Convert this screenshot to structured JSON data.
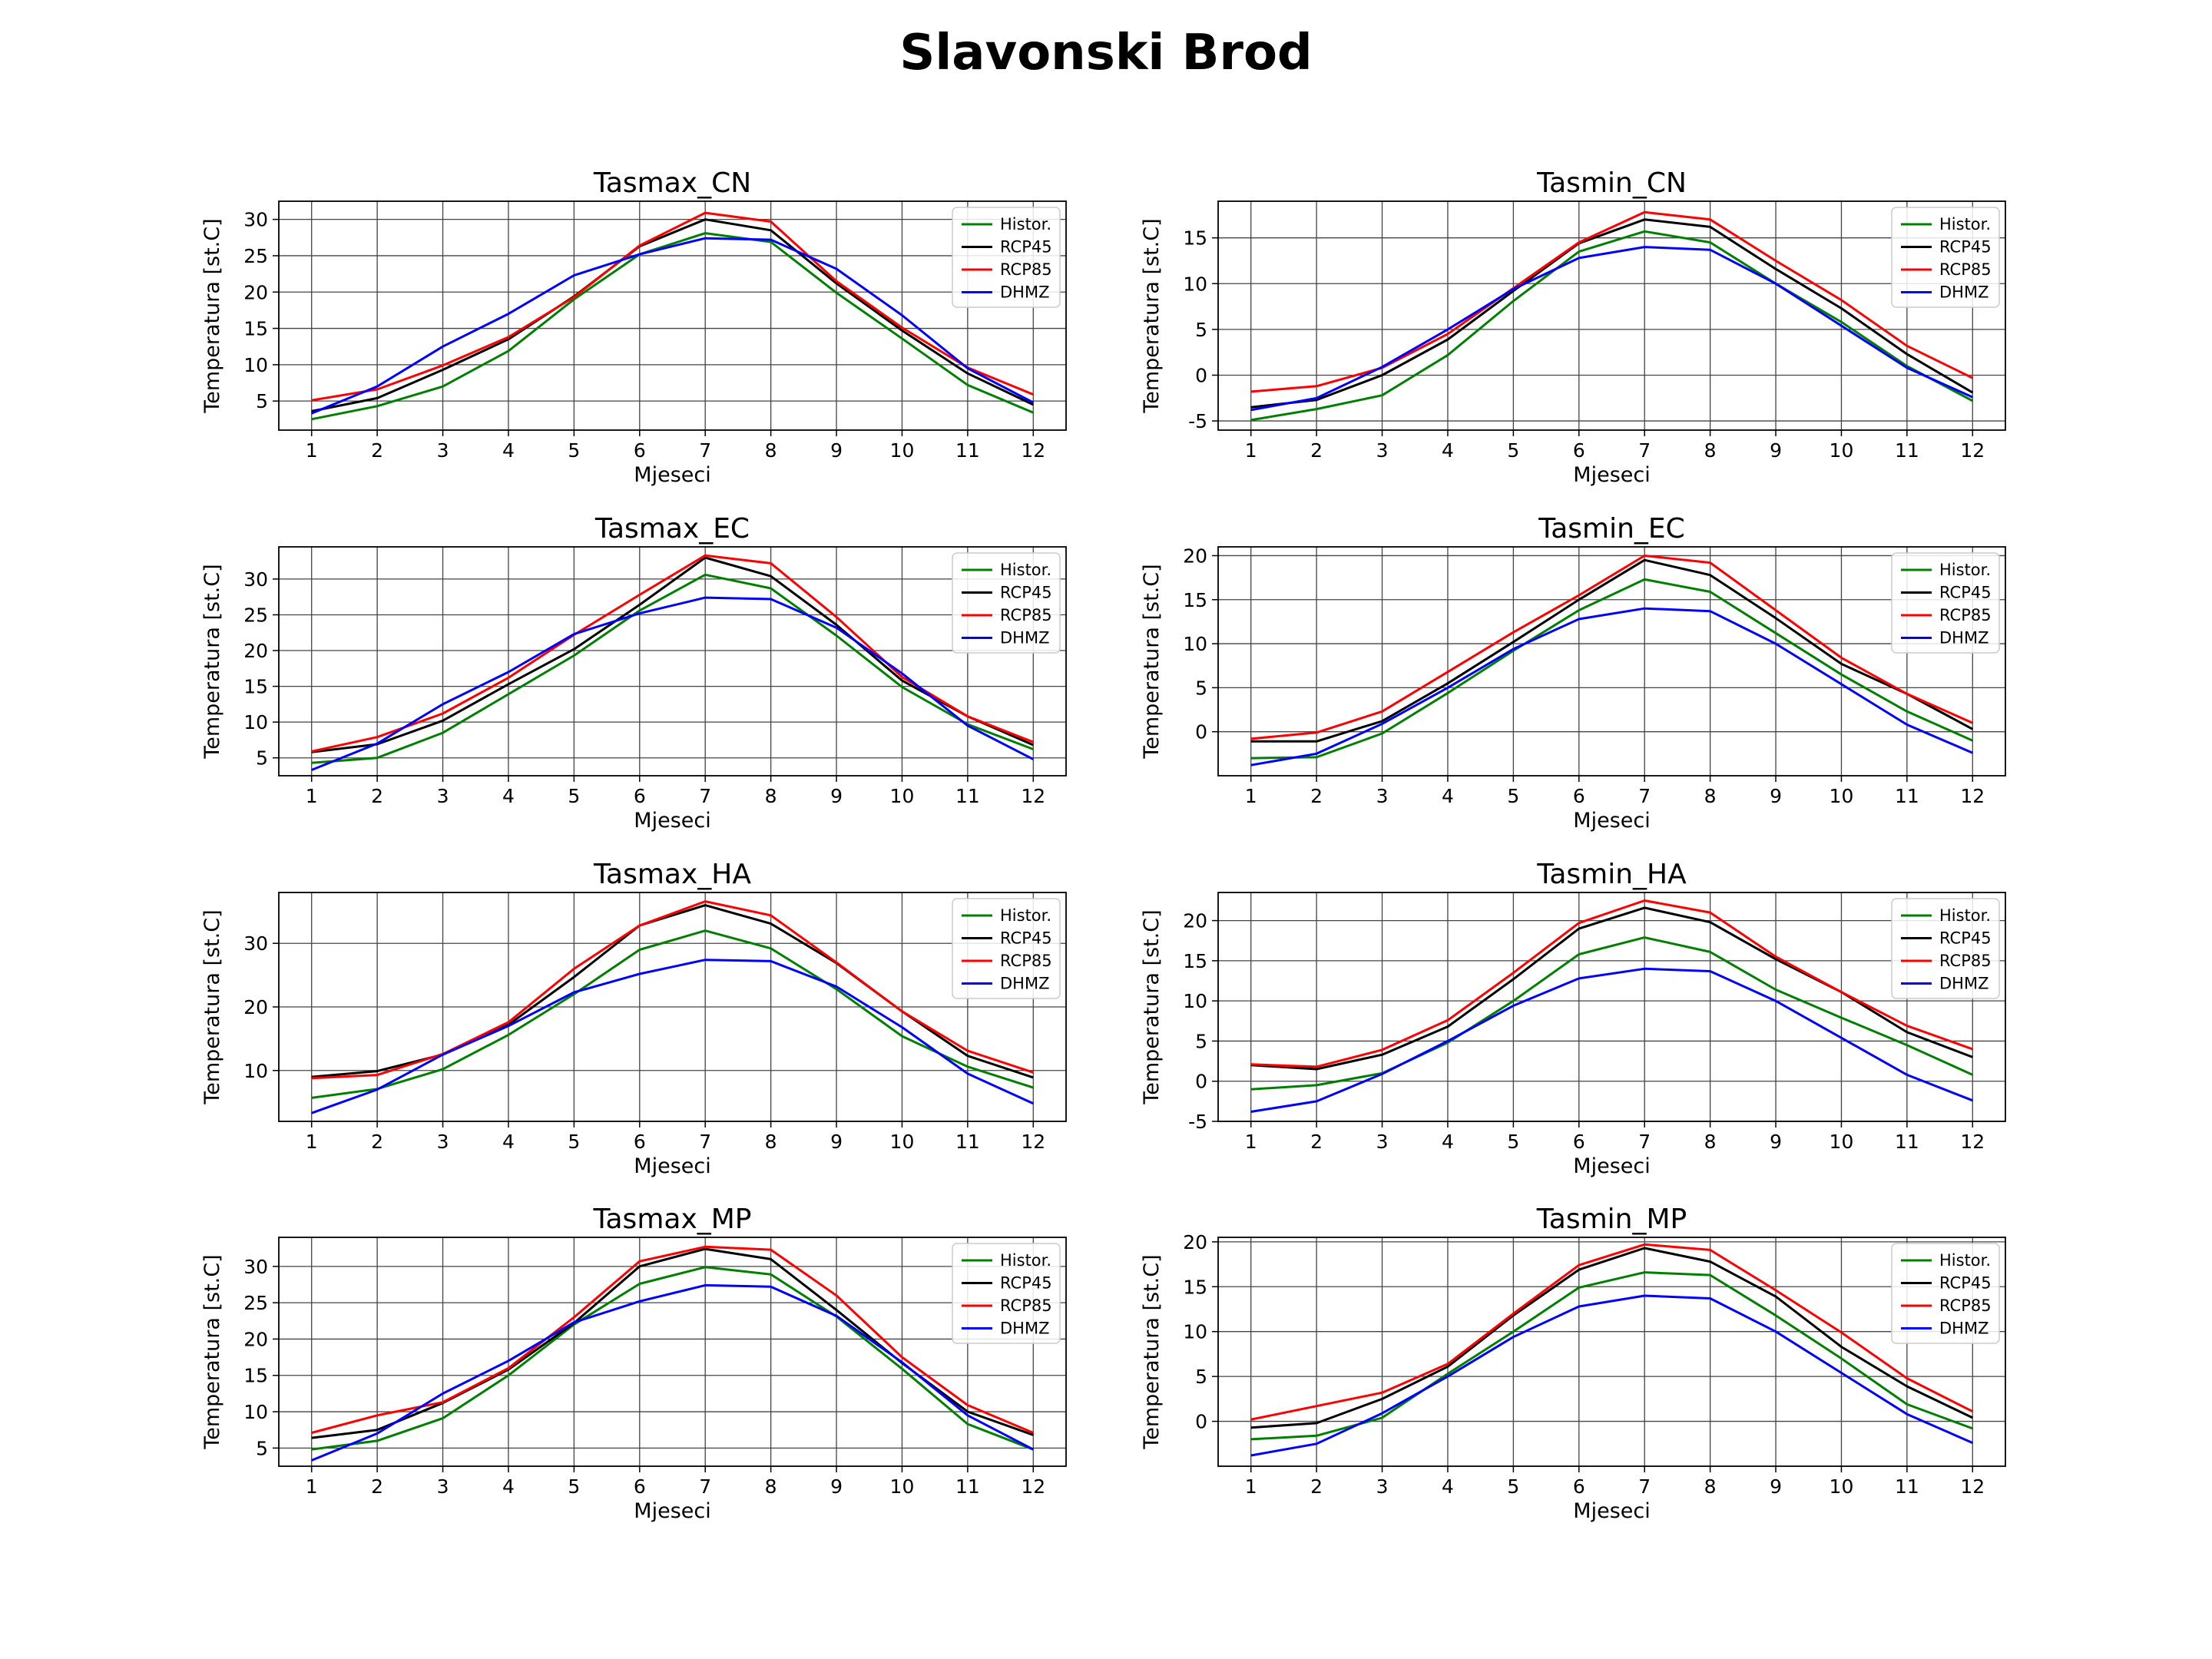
{
  "figure": {
    "title": "Slavonski Brod"
  },
  "chart_data": [
    {
      "type": "line",
      "title": "Tasmax_CN",
      "xlabel": "Mjeseci",
      "ylabel": "Temperatura [st.C]",
      "x": [
        1,
        2,
        3,
        4,
        5,
        6,
        7,
        8,
        9,
        10,
        11,
        12
      ],
      "xlim": [
        0.5,
        12.5
      ],
      "ylim": [
        1,
        32.5
      ],
      "yticks": [
        5,
        10,
        15,
        20,
        25,
        30
      ],
      "grid": true,
      "legend_position": "top-right",
      "series": [
        {
          "name": "Histor.",
          "color": "#008000",
          "values": [
            2.5,
            4.3,
            7.0,
            11.9,
            19.0,
            25.2,
            28.1,
            26.9,
            19.9,
            13.6,
            7.2,
            3.4
          ]
        },
        {
          "name": "RCP45",
          "color": "#000000",
          "values": [
            3.6,
            5.4,
            9.3,
            13.5,
            19.4,
            26.3,
            30.0,
            28.5,
            21.2,
            14.7,
            8.8,
            4.5
          ]
        },
        {
          "name": "RCP85",
          "color": "#ff0000",
          "values": [
            5.1,
            6.6,
            9.9,
            13.8,
            19.3,
            26.4,
            30.9,
            29.7,
            21.5,
            15.1,
            9.6,
            5.9
          ]
        },
        {
          "name": "DHMZ",
          "color": "#0000ff",
          "values": [
            3.3,
            7.0,
            12.5,
            17.0,
            22.3,
            25.2,
            27.4,
            27.2,
            23.2,
            16.8,
            9.5,
            4.8
          ]
        }
      ]
    },
    {
      "type": "line",
      "title": "Tasmin_CN",
      "xlabel": "Mjeseci",
      "ylabel": "Temperatura [st.C]",
      "x": [
        1,
        2,
        3,
        4,
        5,
        6,
        7,
        8,
        9,
        10,
        11,
        12
      ],
      "xlim": [
        0.5,
        12.5
      ],
      "ylim": [
        -6,
        19
      ],
      "yticks": [
        -5,
        0,
        5,
        10,
        15
      ],
      "grid": true,
      "legend_position": "top-right",
      "series": [
        {
          "name": "Histor.",
          "color": "#008000",
          "values": [
            -4.9,
            -3.7,
            -2.2,
            2.2,
            8.1,
            13.5,
            15.7,
            14.5,
            10.0,
            5.8,
            1.0,
            -2.8
          ]
        },
        {
          "name": "RCP45",
          "color": "#000000",
          "values": [
            -3.5,
            -2.7,
            0.0,
            3.9,
            9.2,
            14.4,
            17.0,
            16.2,
            11.6,
            7.3,
            2.3,
            -1.9
          ]
        },
        {
          "name": "RCP85",
          "color": "#ff0000",
          "values": [
            -1.8,
            -1.2,
            0.8,
            4.5,
            9.5,
            14.5,
            17.8,
            17.0,
            12.5,
            8.2,
            3.2,
            -0.3
          ]
        },
        {
          "name": "DHMZ",
          "color": "#0000ff",
          "values": [
            -3.8,
            -2.5,
            0.9,
            5.0,
            9.4,
            12.8,
            14.0,
            13.7,
            10.0,
            5.4,
            0.8,
            -2.4
          ]
        }
      ]
    },
    {
      "type": "line",
      "title": "Tasmax_EC",
      "xlabel": "Mjeseci",
      "ylabel": "Temperatura [st.C]",
      "x": [
        1,
        2,
        3,
        4,
        5,
        6,
        7,
        8,
        9,
        10,
        11,
        12
      ],
      "xlim": [
        0.5,
        12.5
      ],
      "ylim": [
        2.5,
        34.5
      ],
      "yticks": [
        5,
        10,
        15,
        20,
        25,
        30
      ],
      "grid": true,
      "legend_position": "top-right",
      "series": [
        {
          "name": "Histor.",
          "color": "#008000",
          "values": [
            4.3,
            5.0,
            8.5,
            13.9,
            19.3,
            25.6,
            30.6,
            28.7,
            22.1,
            14.9,
            9.7,
            6.2
          ]
        },
        {
          "name": "RCP45",
          "color": "#000000",
          "values": [
            5.8,
            6.9,
            10.2,
            15.3,
            20.2,
            26.4,
            33.0,
            30.4,
            23.6,
            15.8,
            10.8,
            6.8
          ]
        },
        {
          "name": "RCP85",
          "color": "#ff0000",
          "values": [
            5.9,
            7.9,
            11.2,
            16.2,
            22.2,
            27.8,
            33.3,
            32.2,
            24.7,
            16.3,
            10.8,
            7.2
          ]
        },
        {
          "name": "DHMZ",
          "color": "#0000ff",
          "values": [
            3.3,
            7.0,
            12.5,
            17.0,
            22.3,
            25.2,
            27.4,
            27.2,
            23.2,
            16.8,
            9.5,
            4.8
          ]
        }
      ]
    },
    {
      "type": "line",
      "title": "Tasmin_EC",
      "xlabel": "Mjeseci",
      "ylabel": "Temperatura [st.C]",
      "x": [
        1,
        2,
        3,
        4,
        5,
        6,
        7,
        8,
        9,
        10,
        11,
        12
      ],
      "xlim": [
        0.5,
        12.5
      ],
      "ylim": [
        -5,
        21
      ],
      "yticks": [
        0,
        5,
        10,
        15,
        20
      ],
      "grid": true,
      "legend_position": "top-right",
      "series": [
        {
          "name": "Histor.",
          "color": "#008000",
          "values": [
            -3.0,
            -2.9,
            -0.2,
            4.4,
            9.2,
            13.8,
            17.3,
            15.9,
            11.2,
            6.5,
            2.3,
            -1.0
          ]
        },
        {
          "name": "RCP45",
          "color": "#000000",
          "values": [
            -1.1,
            -1.1,
            1.2,
            5.5,
            10.2,
            15.0,
            19.5,
            17.8,
            12.9,
            7.7,
            4.3,
            0.3
          ]
        },
        {
          "name": "RCP85",
          "color": "#ff0000",
          "values": [
            -0.8,
            -0.1,
            2.3,
            6.8,
            11.3,
            15.5,
            20.0,
            19.2,
            13.8,
            8.4,
            4.3,
            1.0
          ]
        },
        {
          "name": "DHMZ",
          "color": "#0000ff",
          "values": [
            -3.8,
            -2.5,
            0.9,
            5.0,
            9.4,
            12.8,
            14.0,
            13.7,
            10.0,
            5.4,
            0.8,
            -2.4
          ]
        }
      ]
    },
    {
      "type": "line",
      "title": "Tasmax_HA",
      "xlabel": "Mjeseci",
      "ylabel": "Temperatura [st.C]",
      "x": [
        1,
        2,
        3,
        4,
        5,
        6,
        7,
        8,
        9,
        10,
        11,
        12
      ],
      "xlim": [
        0.5,
        12.5
      ],
      "ylim": [
        2,
        38
      ],
      "yticks": [
        10,
        20,
        30
      ],
      "grid": true,
      "legend_position": "top-right",
      "series": [
        {
          "name": "Histor.",
          "color": "#008000",
          "values": [
            5.7,
            7.1,
            10.2,
            15.6,
            22.0,
            29.0,
            32.0,
            29.2,
            22.8,
            15.4,
            10.6,
            7.3
          ]
        },
        {
          "name": "RCP45",
          "color": "#000000",
          "values": [
            9.0,
            9.9,
            12.5,
            17.2,
            24.7,
            32.8,
            36.0,
            33.1,
            26.9,
            19.3,
            12.3,
            8.9
          ]
        },
        {
          "name": "RCP85",
          "color": "#ff0000",
          "values": [
            8.8,
            9.3,
            12.6,
            17.6,
            26.0,
            32.8,
            36.6,
            34.4,
            27.0,
            19.3,
            13.1,
            9.7
          ]
        },
        {
          "name": "DHMZ",
          "color": "#0000ff",
          "values": [
            3.3,
            7.0,
            12.5,
            17.0,
            22.3,
            25.2,
            27.4,
            27.2,
            23.2,
            16.8,
            9.5,
            4.8
          ]
        }
      ]
    },
    {
      "type": "line",
      "title": "Tasmin_HA",
      "xlabel": "Mjeseci",
      "ylabel": "Temperatura [st.C]",
      "x": [
        1,
        2,
        3,
        4,
        5,
        6,
        7,
        8,
        9,
        10,
        11,
        12
      ],
      "xlim": [
        0.5,
        12.5
      ],
      "ylim": [
        -5,
        23.5
      ],
      "yticks": [
        -5,
        0,
        5,
        10,
        15,
        20
      ],
      "grid": true,
      "legend_position": "top-right",
      "series": [
        {
          "name": "Histor.",
          "color": "#008000",
          "values": [
            -1.0,
            -0.5,
            1.0,
            4.8,
            10.0,
            15.8,
            17.9,
            16.1,
            11.4,
            7.9,
            4.5,
            0.8
          ]
        },
        {
          "name": "RCP45",
          "color": "#000000",
          "values": [
            2.0,
            1.5,
            3.3,
            6.8,
            12.7,
            19.0,
            21.6,
            19.8,
            15.2,
            11.1,
            6.1,
            3.0
          ]
        },
        {
          "name": "RCP85",
          "color": "#ff0000",
          "values": [
            2.1,
            1.8,
            3.9,
            7.6,
            13.5,
            19.7,
            22.5,
            21.0,
            15.5,
            11.1,
            6.9,
            4.0
          ]
        },
        {
          "name": "DHMZ",
          "color": "#0000ff",
          "values": [
            -3.8,
            -2.5,
            0.9,
            5.0,
            9.4,
            12.8,
            14.0,
            13.7,
            10.0,
            5.4,
            0.8,
            -2.4
          ]
        }
      ]
    },
    {
      "type": "line",
      "title": "Tasmax_MP",
      "xlabel": "Mjeseci",
      "ylabel": "Temperatura [st.C]",
      "x": [
        1,
        2,
        3,
        4,
        5,
        6,
        7,
        8,
        9,
        10,
        11,
        12
      ],
      "xlim": [
        0.5,
        12.5
      ],
      "ylim": [
        2.5,
        34
      ],
      "yticks": [
        5,
        10,
        15,
        20,
        25,
        30
      ],
      "grid": true,
      "legend_position": "top-right",
      "series": [
        {
          "name": "Histor.",
          "color": "#008000",
          "values": [
            4.8,
            6.0,
            9.1,
            15.0,
            22.0,
            27.6,
            29.9,
            28.9,
            23.1,
            15.9,
            8.3,
            4.8
          ]
        },
        {
          "name": "RCP45",
          "color": "#000000",
          "values": [
            6.4,
            7.5,
            11.2,
            15.8,
            22.2,
            30.0,
            32.4,
            31.0,
            24.0,
            16.7,
            10.0,
            6.8
          ]
        },
        {
          "name": "RCP85",
          "color": "#ff0000",
          "values": [
            7.1,
            9.5,
            11.3,
            16.0,
            23.0,
            30.7,
            32.7,
            32.3,
            26.0,
            17.5,
            10.9,
            7.1
          ]
        },
        {
          "name": "DHMZ",
          "color": "#0000ff",
          "values": [
            3.3,
            7.0,
            12.5,
            17.0,
            22.3,
            25.2,
            27.4,
            27.2,
            23.2,
            16.8,
            9.5,
            4.8
          ]
        }
      ]
    },
    {
      "type": "line",
      "title": "Tasmin_MP",
      "xlabel": "Mjeseci",
      "ylabel": "Temperatura [st.C]",
      "x": [
        1,
        2,
        3,
        4,
        5,
        6,
        7,
        8,
        9,
        10,
        11,
        12
      ],
      "xlim": [
        0.5,
        12.5
      ],
      "ylim": [
        -5,
        20.5
      ],
      "yticks": [
        0,
        5,
        10,
        15,
        20
      ],
      "grid": true,
      "legend_position": "top-right",
      "series": [
        {
          "name": "Histor.",
          "color": "#008000",
          "values": [
            -2.0,
            -1.6,
            0.4,
            5.3,
            10.0,
            14.9,
            16.6,
            16.3,
            11.8,
            7.0,
            1.9,
            -0.8
          ]
        },
        {
          "name": "RCP45",
          "color": "#000000",
          "values": [
            -0.7,
            -0.2,
            2.5,
            6.1,
            11.8,
            16.9,
            19.3,
            17.8,
            13.9,
            8.3,
            3.9,
            0.4
          ]
        },
        {
          "name": "RCP85",
          "color": "#ff0000",
          "values": [
            0.2,
            1.7,
            3.2,
            6.4,
            12.0,
            17.4,
            19.7,
            19.1,
            14.6,
            9.9,
            4.8,
            1.1
          ]
        },
        {
          "name": "DHMZ",
          "color": "#0000ff",
          "values": [
            -3.8,
            -2.5,
            0.9,
            5.0,
            9.4,
            12.8,
            14.0,
            13.7,
            10.0,
            5.4,
            0.8,
            -2.4
          ]
        }
      ]
    }
  ]
}
